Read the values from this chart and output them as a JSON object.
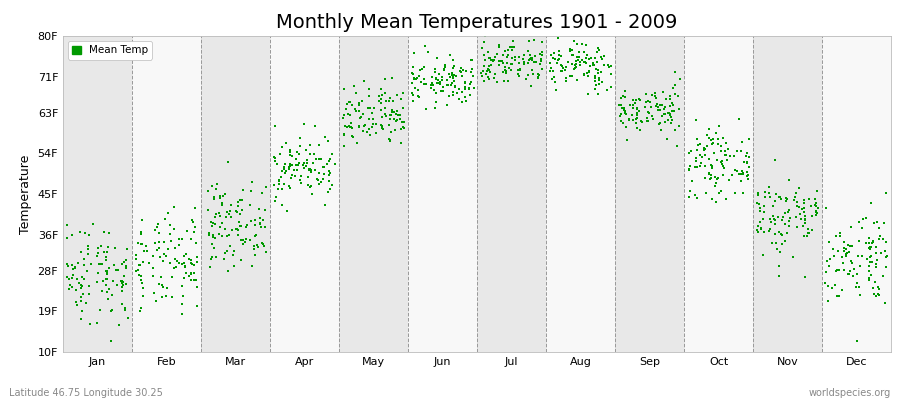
{
  "title": "Monthly Mean Temperatures 1901 - 2009",
  "ylabel": "Temperature",
  "xlabel_bottom_left": "Latitude 46.75 Longitude 30.25",
  "xlabel_bottom_right": "worldspecies.org",
  "yticks": [
    10,
    19,
    28,
    36,
    45,
    54,
    63,
    71,
    80
  ],
  "ytick_labels": [
    "10F",
    "19F",
    "28F",
    "36F",
    "45F",
    "54F",
    "63F",
    "71F",
    "80F"
  ],
  "months": [
    "Jan",
    "Feb",
    "Mar",
    "Apr",
    "May",
    "Jun",
    "Jul",
    "Aug",
    "Sep",
    "Oct",
    "Nov",
    "Dec"
  ],
  "month_offsets": [
    0.5,
    1.5,
    2.5,
    3.5,
    4.5,
    5.5,
    6.5,
    7.5,
    8.5,
    9.5,
    10.5,
    11.5
  ],
  "month_dividers": [
    1,
    2,
    3,
    4,
    5,
    6,
    7,
    8,
    9,
    10,
    11
  ],
  "ylim": [
    10,
    80
  ],
  "xlim": [
    0,
    12
  ],
  "dot_color": "#009900",
  "dot_size": 3,
  "background_color": "#ffffff",
  "band_colors": [
    "#e8e8e8",
    "#f8f8f8"
  ],
  "legend_label": "Mean Temp",
  "title_fontsize": 14,
  "label_fontsize": 9,
  "tick_fontsize": 8,
  "n_years": 109,
  "mean_temps_C": [
    -2.5,
    -1.5,
    3.5,
    10.5,
    16.5,
    21.0,
    23.5,
    23.0,
    17.5,
    11.0,
    4.5,
    -0.5
  ],
  "std_temps_C": [
    3.2,
    3.0,
    2.5,
    2.0,
    2.0,
    1.5,
    1.5,
    1.5,
    1.5,
    2.0,
    2.5,
    3.0
  ],
  "seed": 42
}
